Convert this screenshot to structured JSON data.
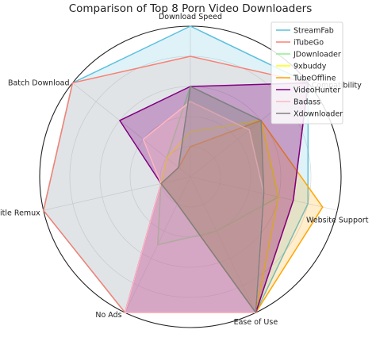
{
  "chart_data": {
    "type": "radar",
    "title": "Comparison of Top 8 Porn Video Downloaders",
    "axes": [
      "Download Speed",
      "Compatibility",
      "Website Support",
      "Ease of Use",
      "No Ads",
      "Subtitle Remux",
      "Batch Download"
    ],
    "rlim": [
      0,
      10
    ],
    "grid": true,
    "legend_position": "top-right",
    "series": [
      {
        "name": "StreamFab",
        "color": "#5bc0de",
        "fill": "#5bc0de",
        "fill_opacity": 0.2,
        "values": [
          10,
          10,
          8,
          10,
          10,
          10,
          10
        ]
      },
      {
        "name": "iTubeGo",
        "color": "#fa8072",
        "fill": "#fa8072",
        "fill_opacity": 0.12,
        "values": [
          8,
          10,
          7,
          10,
          10,
          10,
          10
        ]
      },
      {
        "name": "JDownloader",
        "color": "#90ee90",
        "fill": "#90ee90",
        "fill_opacity": 0.1,
        "values": [
          6,
          6,
          6,
          4,
          5,
          2,
          2
        ]
      },
      {
        "name": "9xbuddy",
        "color": "#ffff00",
        "fill": "#ffff00",
        "fill_opacity": 0.1,
        "values": [
          3,
          6,
          6,
          10,
          2,
          2,
          2
        ]
      },
      {
        "name": "TubeOffline",
        "color": "#ffa500",
        "fill": "#ffa500",
        "fill_opacity": 0.2,
        "values": [
          2,
          6,
          9,
          10,
          2,
          2,
          1
        ]
      },
      {
        "name": "VideoHunter",
        "color": "#800080",
        "fill": "#800080",
        "fill_opacity": 0.3,
        "values": [
          6,
          10,
          7,
          10,
          10,
          2,
          6
        ]
      },
      {
        "name": "Badass",
        "color": "#ffb6c1",
        "fill": "#ffb6c1",
        "fill_opacity": 0.3,
        "values": [
          5,
          5,
          5,
          10,
          10,
          2,
          4
        ]
      },
      {
        "name": "Xdownloader",
        "color": "#808080",
        "fill": "#808080",
        "fill_opacity": 0.3,
        "values": [
          6,
          6,
          5,
          10,
          2,
          2,
          1
        ]
      }
    ]
  }
}
